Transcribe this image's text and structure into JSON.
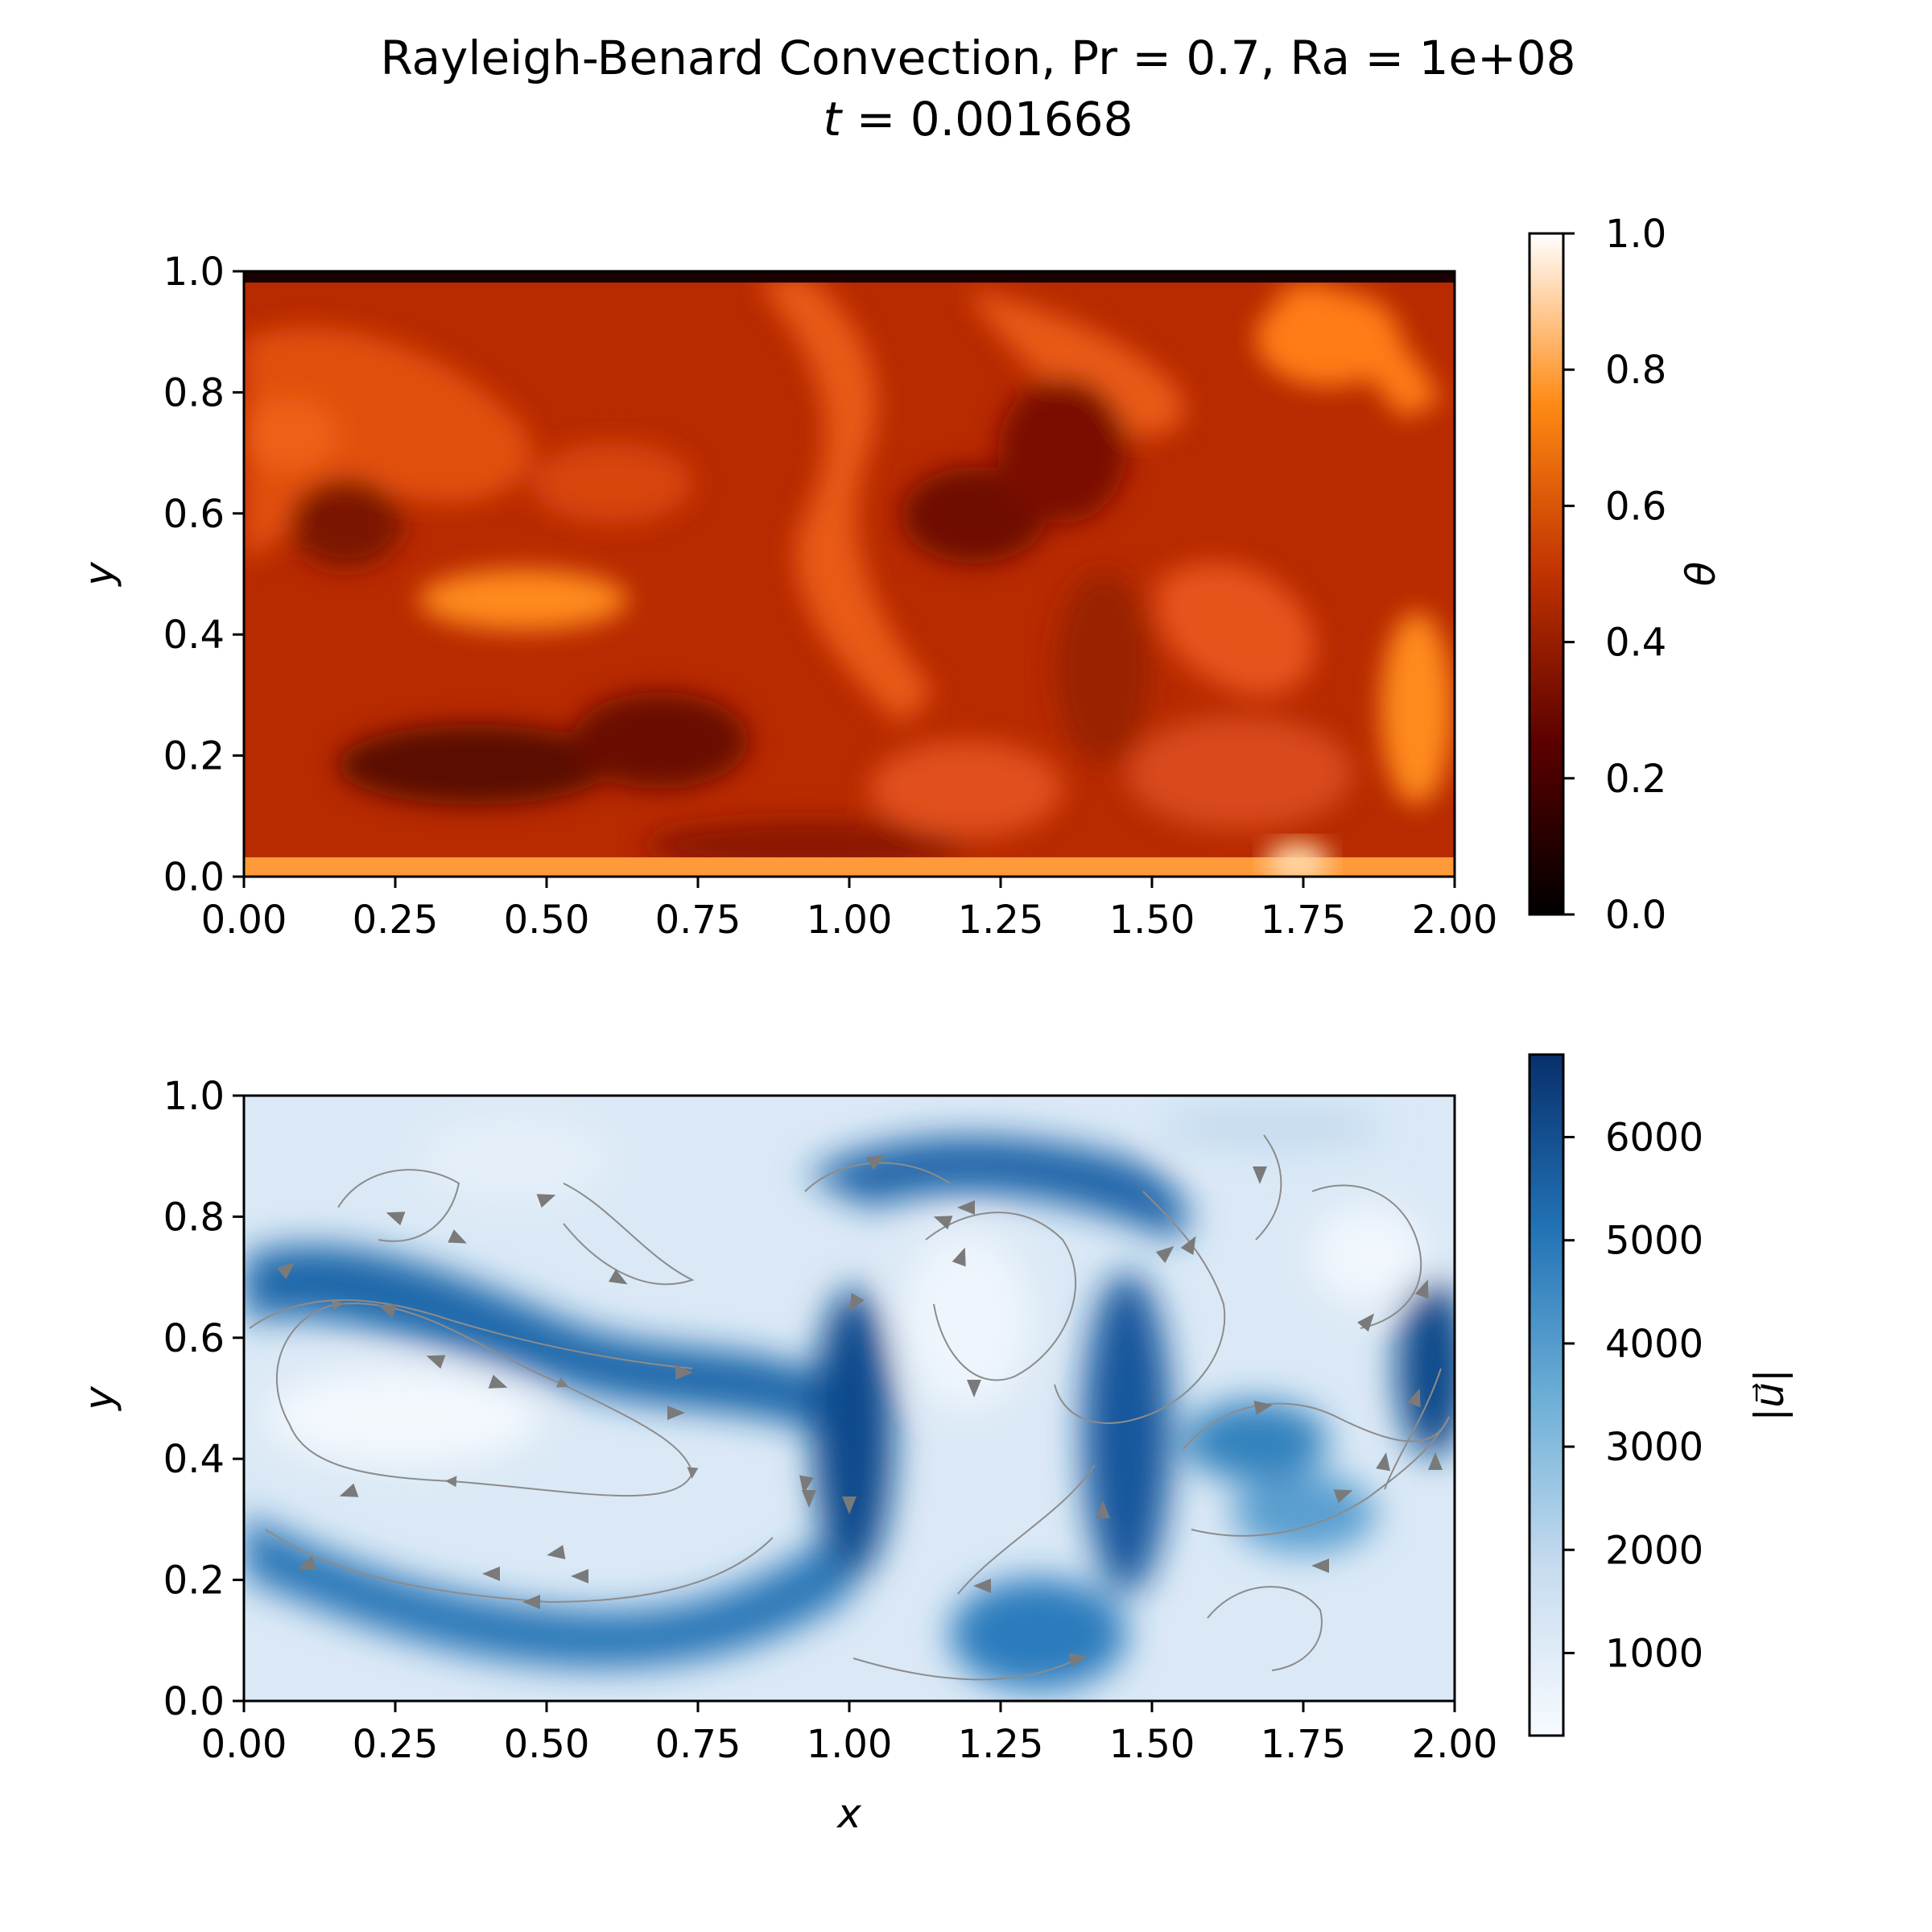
{
  "figure": {
    "title_line1": "Rayleigh-Benard Convection, Pr = 0.7, Ra = 1e+08",
    "title_t_symbol": "t",
    "title_t_value": " = 0.001668"
  },
  "chart_data": [
    {
      "type": "heatmap",
      "field": "temperature",
      "colormap": "gist_heat",
      "xlim": [
        0,
        2
      ],
      "ylim": [
        0,
        1
      ],
      "xticks": [
        "0.00",
        "0.25",
        "0.50",
        "0.75",
        "1.00",
        "1.25",
        "1.50",
        "1.75",
        "2.00"
      ],
      "yticks": [
        "0.0",
        "0.2",
        "0.4",
        "0.6",
        "0.8",
        "1.0"
      ],
      "xlabel": "",
      "ylabel": "y",
      "colorbar": {
        "label": "θ",
        "range": [
          0,
          1
        ],
        "ticks": [
          "0.0",
          "0.2",
          "0.4",
          "0.6",
          "0.8",
          "1.0"
        ]
      }
    },
    {
      "type": "heatmap",
      "field": "velocity magnitude with streamlines",
      "colormap": "Blues",
      "xlim": [
        0,
        2
      ],
      "ylim": [
        0,
        1
      ],
      "xticks": [
        "0.00",
        "0.25",
        "0.50",
        "0.75",
        "1.00",
        "1.25",
        "1.50",
        "1.75",
        "2.00"
      ],
      "yticks": [
        "0.0",
        "0.2",
        "0.4",
        "0.6",
        "0.8",
        "1.0"
      ],
      "xlabel": "x",
      "ylabel": "y",
      "colorbar": {
        "label": "|u⃗|",
        "range": [
          200,
          6800
        ],
        "ticks": [
          "1000",
          "2000",
          "3000",
          "4000",
          "5000",
          "6000"
        ]
      }
    }
  ]
}
